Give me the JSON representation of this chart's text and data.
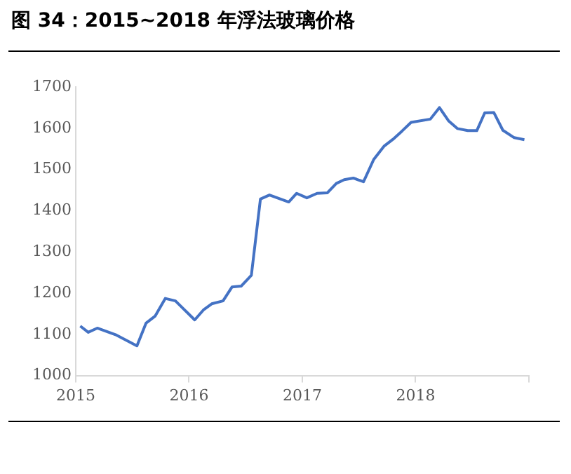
{
  "chart_data": {
    "type": "line",
    "title": "图 34：2015~2018 年浮法玻璃价格",
    "x": [
      2015.04,
      2015.11,
      2015.19,
      2015.36,
      2015.54,
      2015.62,
      2015.7,
      2015.79,
      2015.88,
      2016.05,
      2016.13,
      2016.2,
      2016.3,
      2016.38,
      2016.46,
      2016.55,
      2016.63,
      2016.71,
      2016.88,
      2016.95,
      2017.04,
      2017.13,
      2017.22,
      2017.3,
      2017.37,
      2017.45,
      2017.54,
      2017.63,
      2017.72,
      2017.8,
      2017.88,
      2017.96,
      2018.13,
      2018.21,
      2018.29,
      2018.37,
      2018.46,
      2018.54,
      2018.61,
      2018.69,
      2018.77,
      2018.87,
      2018.96
    ],
    "series": [
      {
        "color": "#4472c4",
        "values": [
          1120,
          1105,
          1115,
          1098,
          1072,
          1127,
          1144,
          1187,
          1181,
          1135,
          1160,
          1174,
          1181,
          1215,
          1217,
          1243,
          1428,
          1438,
          1421,
          1442,
          1431,
          1442,
          1443,
          1466,
          1475,
          1479,
          1470,
          1524,
          1556,
          1573,
          1593,
          1614,
          1622,
          1650,
          1618,
          1599,
          1594,
          1594,
          1637,
          1638,
          1595,
          1577,
          1572
        ]
      }
    ],
    "xlim": [
      2015,
      2019
    ],
    "xticks": [
      2015,
      2016,
      2017,
      2018,
      {
        "value": 2019,
        "label": null
      }
    ],
    "ylim": [
      1000,
      1700
    ],
    "yticks": [
      1000,
      1100,
      1200,
      1300,
      1400,
      1500,
      1600,
      1700
    ],
    "grid": false,
    "legend": false,
    "marker": "none",
    "line_style": "solid"
  }
}
